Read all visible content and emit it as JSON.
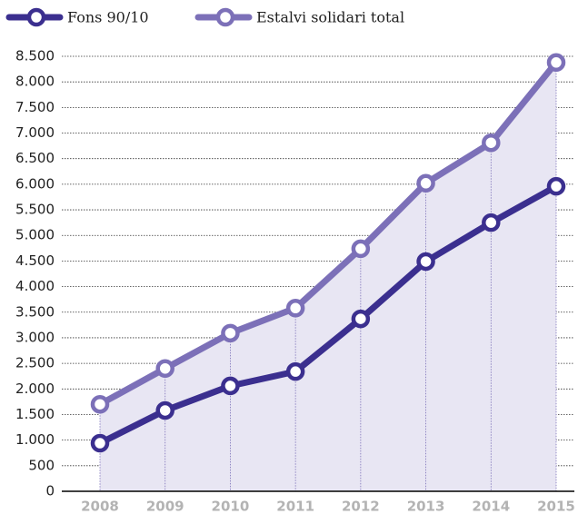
{
  "chart_data": {
    "type": "line",
    "categories": [
      "2008",
      "2009",
      "2010",
      "2011",
      "2012",
      "2013",
      "2014",
      "2015"
    ],
    "series": [
      {
        "name": "Fons 90/10",
        "color": "#3b2f8f",
        "values": [
          940,
          1580,
          2060,
          2340,
          3370,
          4490,
          5250,
          5960
        ]
      },
      {
        "name": "Estalvi solidari total",
        "color": "#7c70b8",
        "values": [
          1700,
          2400,
          3090,
          3580,
          4740,
          6020,
          6810,
          8380
        ]
      }
    ],
    "area_color": "#e8e6f3",
    "ylim": [
      0,
      8500
    ],
    "yticks": [
      0,
      500,
      {
        "value": 1000,
        "label": "1.000"
      },
      {
        "value": 1500,
        "label": "1.500"
      },
      {
        "value": 2000,
        "label": "2.000"
      },
      {
        "value": 2500,
        "label": "2.500"
      },
      {
        "value": 3000,
        "label": "3.000"
      },
      {
        "value": 3500,
        "label": "3.500"
      },
      {
        "value": 4000,
        "label": "4.000"
      },
      {
        "value": 4500,
        "label": "4.500"
      },
      {
        "value": 5000,
        "label": "5.000"
      },
      {
        "value": 5500,
        "label": "5.500"
      },
      {
        "value": 6000,
        "label": "6.000"
      },
      {
        "value": 6500,
        "label": "6.500"
      },
      {
        "value": 7000,
        "label": "7.000"
      },
      {
        "value": 7500,
        "label": "7.500"
      },
      {
        "value": 8000,
        "label": "8.000"
      },
      {
        "value": 8500,
        "label": "8.500"
      }
    ],
    "grid": true
  }
}
